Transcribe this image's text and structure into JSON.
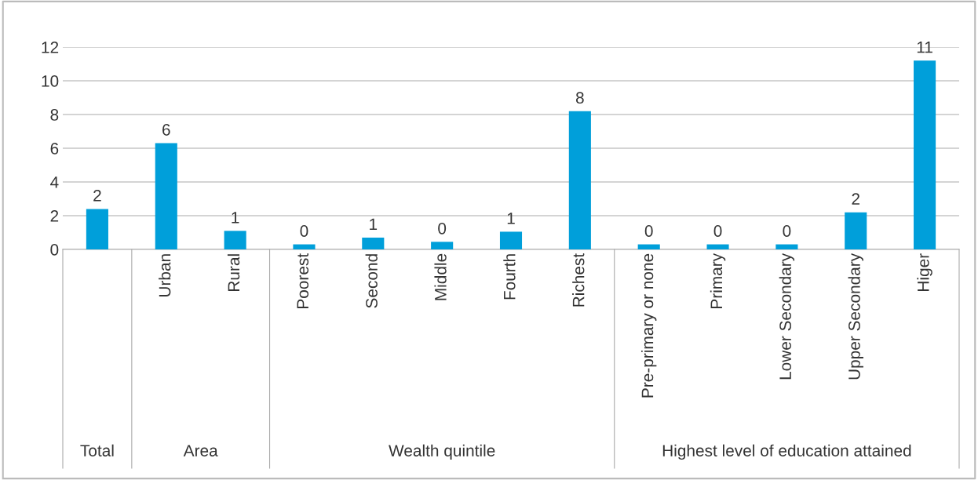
{
  "chart_data": {
    "type": "bar",
    "categories": [
      null,
      "Urban",
      "Rural",
      "Poorest",
      "Second",
      "Middle",
      "Fourth",
      "Richest",
      "Pre-primary or none",
      "Primary",
      "Lower Secondary",
      "Upper Secondary",
      "Higer"
    ],
    "values": [
      2.4,
      6.3,
      1.1,
      0.3,
      0.7,
      0.45,
      1.05,
      8.2,
      0.3,
      0.3,
      0.3,
      2.2,
      11.2
    ],
    "value_labels": [
      "2",
      "6",
      "1",
      "0",
      "1",
      "0",
      "1",
      "8",
      "0",
      "0",
      "0",
      "2",
      "11"
    ],
    "color": "#009fda",
    "ylim": [
      0,
      12
    ],
    "yticks": [
      0,
      2,
      4,
      6,
      8,
      10,
      12
    ],
    "grid": "y",
    "annotations": [
      "Total",
      "Area",
      "Wealth quintile",
      "Highest level of education attained"
    ]
  }
}
